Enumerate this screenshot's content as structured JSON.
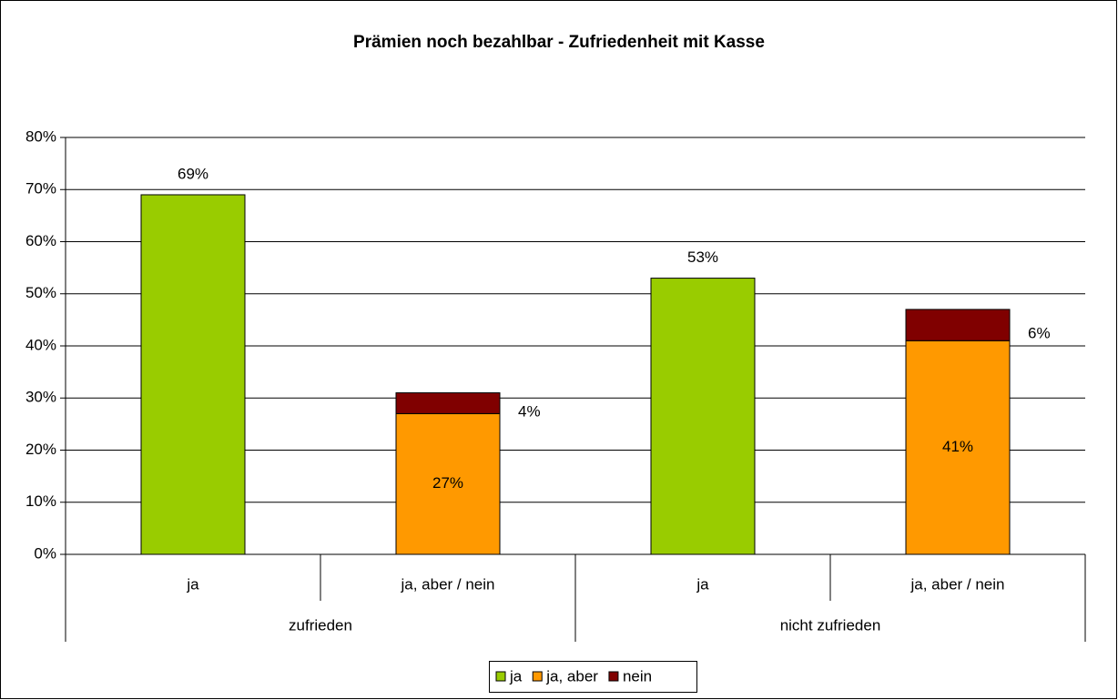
{
  "chart_data": {
    "type": "stacked_bar",
    "title": "Prämien noch bezahlbar - Zufriedenheit mit Kasse",
    "categories": [
      "ja",
      "ja, aber / nein",
      "ja",
      "ja, aber / nein"
    ],
    "groups": [
      "zufrieden",
      "nicht zufrieden"
    ],
    "series": [
      {
        "name": "ja",
        "color": "#99cc00",
        "values": [
          69,
          null,
          53,
          null
        ],
        "value_labels": [
          "69%",
          null,
          "53%",
          null
        ]
      },
      {
        "name": "ja, aber",
        "color": "#ff9900",
        "values": [
          null,
          27,
          null,
          41
        ],
        "value_labels": [
          null,
          "27%",
          null,
          "41%"
        ]
      },
      {
        "name": "nein",
        "color": "#800000",
        "values": [
          null,
          4,
          null,
          6
        ],
        "value_labels": [
          null,
          "4%",
          null,
          "6%"
        ]
      }
    ],
    "ylim": [
      0,
      80
    ],
    "yticks": [
      {
        "value": 0,
        "label": "0%"
      },
      {
        "value": 10,
        "label": "10%"
      },
      {
        "value": 20,
        "label": "20%"
      },
      {
        "value": 30,
        "label": "30%"
      },
      {
        "value": 40,
        "label": "40%"
      },
      {
        "value": 50,
        "label": "50%"
      },
      {
        "value": 60,
        "label": "60%"
      },
      {
        "value": 70,
        "label": "70%"
      },
      {
        "value": 80,
        "label": "80%"
      }
    ],
    "grid": true,
    "legend": "bottom"
  }
}
